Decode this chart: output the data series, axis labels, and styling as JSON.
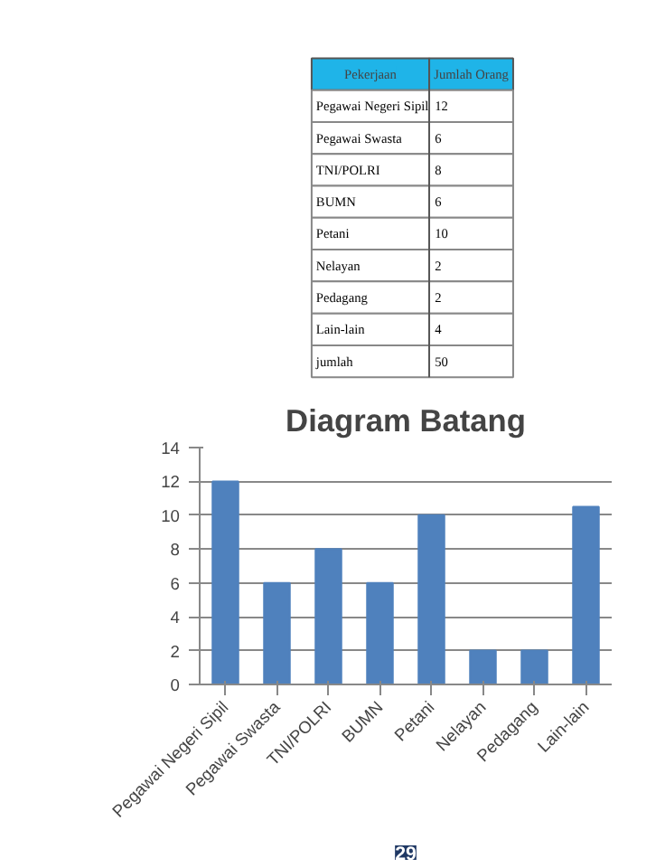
{
  "chart_data": [
    {
      "type": "other",
      "annotations": [
        "Pekerjaan",
        "Jumlah Orang"
      ],
      "categories": [
        "Pegawai Negeri Sipil",
        "Pegawai Swasta",
        "TNI/POLRI",
        "BUMN",
        "Petani",
        "Nelayan",
        "Pedagang",
        "Lain-lain",
        "jumlah"
      ],
      "values": [
        12,
        6,
        8,
        6,
        10,
        2,
        2,
        4,
        50
      ],
      "data_labels": true
    },
    {
      "type": "bar",
      "title": "Diagram Batang",
      "categories": [
        "Pegawai Negeri Sipil",
        "Pegawai Swasta",
        "TNI/POLRI",
        "BUMN",
        "Petani",
        "Nelayan",
        "Pedagang",
        "Lain-lain"
      ],
      "values": [
        12,
        6,
        8,
        6,
        10,
        2,
        2,
        10.5
      ],
      "color": "#4f81bd",
      "ylim": [
        0,
        14
      ],
      "yticks": [
        0,
        2,
        4,
        6,
        8,
        10,
        12,
        14
      ],
      "grid": "y",
      "annotations": [
        "29"
      ]
    }
  ]
}
